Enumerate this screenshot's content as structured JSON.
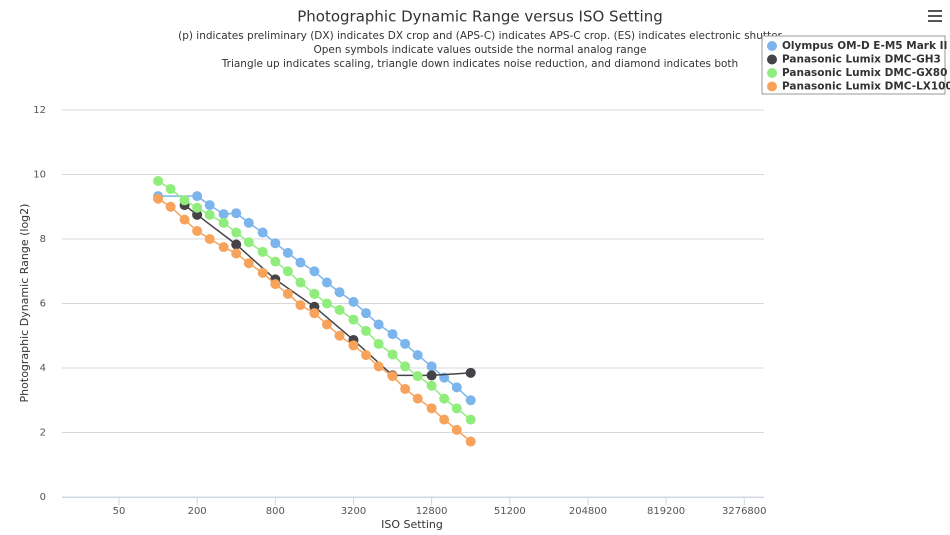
{
  "chart_data": {
    "type": "line",
    "title": "Photographic Dynamic Range versus ISO Setting",
    "subtitle": [
      "(p) indicates preliminary (DX) indicates DX crop and (APS-C) indicates APS-C crop. (ES) indicates electronic shutter",
      "Open symbols indicate values outside the normal analog range",
      "Triangle up indicates scaling, triangle down indicates noise reduction, and diamond indicates both"
    ],
    "x_label": "ISO Setting",
    "y_label": "Photographic Dynamic Range (log2)",
    "x_scale": "log2",
    "xlim": [
      18.2,
      4650000
    ],
    "xticks": [
      50,
      200,
      800,
      3200,
      12800,
      51200,
      204800,
      819200,
      3276800
    ],
    "ylim": [
      0,
      12
    ],
    "yticks": [
      0,
      2,
      4,
      6,
      8,
      10,
      12
    ],
    "grid": true,
    "legend_position": "top-right",
    "series": [
      {
        "name": "Olympus OM-D E-M5 Mark II",
        "color": "#7cb5ec",
        "x": [
          100,
          200,
          250,
          320,
          400,
          500,
          640,
          800,
          1000,
          1250,
          1600,
          2000,
          2500,
          3200,
          4000,
          5000,
          6400,
          8000,
          10000,
          12800,
          16000,
          20000,
          25600
        ],
        "values": [
          9.33,
          9.33,
          9.05,
          8.77,
          8.8,
          8.5,
          8.2,
          7.87,
          7.57,
          7.27,
          7.0,
          6.65,
          6.35,
          6.05,
          5.7,
          5.35,
          5.05,
          4.75,
          4.4,
          4.05,
          3.7,
          3.4,
          3.0
        ]
      },
      {
        "name": "Panasonic Lumix DMC-GH3",
        "color": "#434348",
        "x": [
          160,
          200,
          400,
          800,
          1600,
          3200,
          6400,
          12800,
          25600
        ],
        "values": [
          9.05,
          8.75,
          7.83,
          6.75,
          5.9,
          4.87,
          3.77,
          3.77,
          3.85
        ]
      },
      {
        "name": "Panasonic Lumix DMC-GX80",
        "color": "#90ed7d",
        "x": [
          100,
          125,
          160,
          200,
          250,
          320,
          400,
          500,
          640,
          800,
          1000,
          1250,
          1600,
          2000,
          2500,
          3200,
          4000,
          5000,
          6400,
          8000,
          10000,
          12800,
          16000,
          20000,
          25600
        ],
        "values": [
          9.8,
          9.55,
          9.2,
          8.97,
          8.75,
          8.5,
          8.2,
          7.9,
          7.6,
          7.3,
          7.0,
          6.65,
          6.3,
          6.0,
          5.8,
          5.5,
          5.15,
          4.75,
          4.42,
          4.05,
          3.75,
          3.45,
          3.05,
          2.75,
          2.4
        ]
      },
      {
        "name": "Panasonic Lumix DMC-LX100",
        "color": "#f7a35c",
        "x": [
          100,
          125,
          160,
          200,
          250,
          320,
          400,
          500,
          640,
          800,
          1000,
          1250,
          1600,
          2000,
          2500,
          3200,
          4000,
          5000,
          6400,
          8000,
          10000,
          12800,
          16000,
          20000,
          25600
        ],
        "values": [
          9.25,
          9.0,
          8.6,
          8.25,
          8.0,
          7.75,
          7.55,
          7.25,
          6.95,
          6.6,
          6.3,
          5.95,
          5.7,
          5.35,
          5.0,
          4.7,
          4.4,
          4.05,
          3.75,
          3.35,
          3.05,
          2.75,
          2.4,
          2.08,
          1.72
        ]
      }
    ]
  }
}
